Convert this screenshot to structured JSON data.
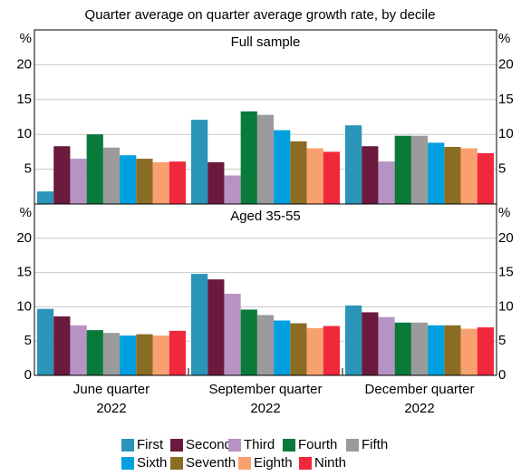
{
  "chart_data": [
    {
      "type": "bar",
      "title": "Quarter average on quarter average growth rate, by decile",
      "subtitle": "Full sample",
      "categories": [
        [
          "June quarter",
          "2022"
        ],
        [
          "September quarter",
          "2022"
        ],
        [
          "December quarter",
          "2022"
        ]
      ],
      "ylabel": "%",
      "ylim": [
        0,
        25
      ],
      "yticks": [
        5,
        10,
        15,
        20
      ],
      "grid": true,
      "series": [
        {
          "name": "First",
          "color": "#2a95b8",
          "values": [
            1.8,
            12.1,
            11.3
          ]
        },
        {
          "name": "Second",
          "color": "#6b1a3e",
          "values": [
            8.3,
            6.0,
            8.3
          ]
        },
        {
          "name": "Third",
          "color": "#b792c4",
          "values": [
            6.5,
            4.1,
            6.1
          ]
        },
        {
          "name": "Fourth",
          "color": "#0a7a3b",
          "values": [
            10.0,
            13.3,
            9.8
          ]
        },
        {
          "name": "Fifth",
          "color": "#9b9b9b",
          "values": [
            8.1,
            12.8,
            9.8
          ]
        },
        {
          "name": "Sixth",
          "color": "#00a0e0",
          "values": [
            7.0,
            10.6,
            8.8
          ]
        },
        {
          "name": "Seventh",
          "color": "#8a6d23",
          "values": [
            6.5,
            9.0,
            8.2
          ]
        },
        {
          "name": "Eighth",
          "color": "#f8a070",
          "values": [
            6.0,
            8.0,
            8.0
          ]
        },
        {
          "name": "Ninth",
          "color": "#f0283c",
          "values": [
            6.1,
            7.5,
            7.3
          ]
        }
      ]
    },
    {
      "type": "bar",
      "subtitle": "Aged 35-55",
      "ylabel": "%",
      "ylim": [
        0,
        25
      ],
      "yticks": [
        0,
        5,
        10,
        15,
        20
      ],
      "grid": true,
      "series": [
        {
          "values": [
            9.7,
            14.8,
            10.2
          ]
        },
        {
          "values": [
            8.6,
            14.0,
            9.2
          ]
        },
        {
          "values": [
            7.3,
            11.9,
            8.5
          ]
        },
        {
          "values": [
            6.6,
            9.6,
            7.7
          ]
        },
        {
          "values": [
            6.2,
            8.8,
            7.7
          ]
        },
        {
          "values": [
            5.8,
            8.0,
            7.3
          ]
        },
        {
          "values": [
            6.0,
            7.6,
            7.3
          ]
        },
        {
          "values": [
            5.8,
            6.9,
            6.8
          ]
        },
        {
          "values": [
            6.5,
            7.2,
            7.0
          ]
        }
      ]
    }
  ]
}
